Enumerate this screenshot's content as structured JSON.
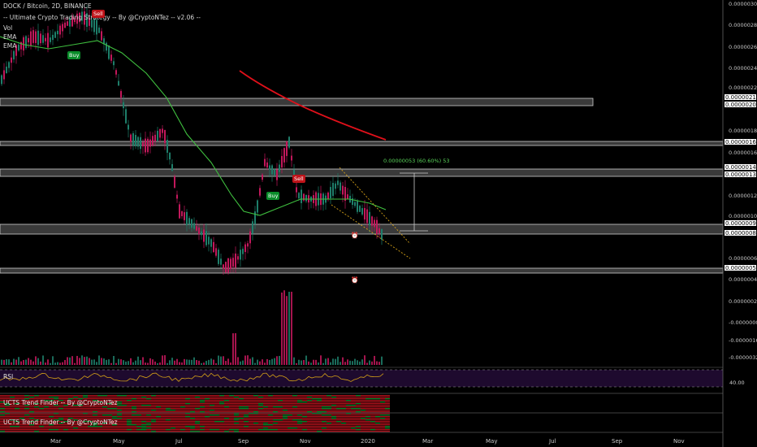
{
  "legend": {
    "symbol": "DOCK / Bitcoin, 2D, BINANCE",
    "indicator": "-- Ultimate Crypto Trading Strategy -- By @CryptoNTez -- v2.06 --",
    "vol": "Vol",
    "ema1": "EMA",
    "ema2": "EMA"
  },
  "signals": [
    {
      "label": "Sell",
      "type": "sell"
    },
    {
      "label": "Buy",
      "type": "buy"
    },
    {
      "label": "Buy",
      "type": "buy"
    },
    {
      "label": "Sell",
      "type": "sell"
    }
  ],
  "measurement": "0.00000053 (60.60%) 53",
  "price_axis": {
    "ticks": [
      "0.00000300",
      "0.00000280",
      "0.00000260",
      "0.00000240",
      "0.00000220",
      "0.00000180",
      "0.00000160",
      "0.00000120",
      "0.00000100",
      "0.00000060",
      "0.00000040",
      "0.00000020",
      "-0.0000000",
      "-0.0000016",
      "-0.0000032"
    ],
    "boxes": [
      "0.00000210",
      "0.00000204",
      "0.00000169",
      "0.00000143",
      "0.00000139",
      "0.00000092",
      "0.00000084",
      "0.00000050"
    ]
  },
  "time_axis": [
    "Mar",
    "May",
    "Jul",
    "Sep",
    "Nov",
    "2020",
    "Mar",
    "May",
    "Jul",
    "Sep",
    "Nov"
  ],
  "panes": {
    "rsi_title": "RSI",
    "rsi_level": "40.00",
    "trend1_title": "UCTS Trend Finder -- By @CryptoNTez",
    "trend2_title": "UCTS Trend Finder -- By @CryptoNTez"
  },
  "colors": {
    "background": "#000000",
    "up": "#1e7e6a",
    "down": "#c2185b",
    "ema_fast": "#3fbf3f",
    "ema_slow": "#e0101a",
    "zone": "#2a2a2a",
    "rsi_bg": "#1e0a2e"
  }
}
